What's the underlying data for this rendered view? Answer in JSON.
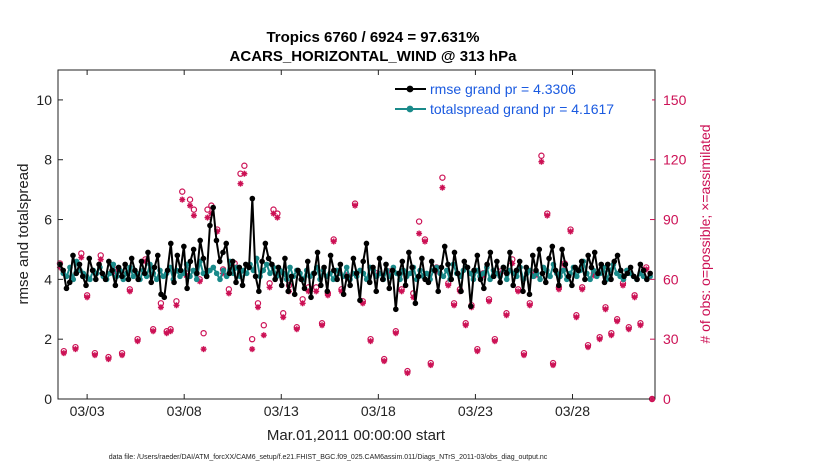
{
  "chart_data": {
    "type": "line",
    "title_line1": "Tropics 6760 / 6924 = 97.631%",
    "title_line2": "ACARS_HORIZONTAL_WIND @ 313 hPa",
    "xlabel": "Mar.01,2011 00:00:00 start",
    "ylabel_left": "rmse and totalspread",
    "ylabel_right": "# of obs: o=possible; ×=assimilated",
    "x_range": [
      1.5,
      32.25
    ],
    "ylim_left": [
      0,
      11
    ],
    "ylim_right": [
      0,
      165
    ],
    "x_ticks": [
      {
        "value": 3,
        "label": "03/03"
      },
      {
        "value": 8,
        "label": "03/08"
      },
      {
        "value": 13,
        "label": "03/13"
      },
      {
        "value": 18,
        "label": "03/18"
      },
      {
        "value": 23,
        "label": "03/23"
      },
      {
        "value": 28,
        "label": "03/28"
      }
    ],
    "y_ticks_left": [
      0,
      2,
      4,
      6,
      8,
      10
    ],
    "y_ticks_right": [
      0,
      30,
      60,
      90,
      120,
      150
    ],
    "legend": [
      {
        "label": "rmse grand pr = 4.3306",
        "color": "#000000"
      },
      {
        "label": "totalspread grand pr = 4.1617",
        "color": "#1a8a8a"
      }
    ],
    "colors": {
      "rmse": "#000000",
      "spread": "#1a8a8a",
      "obs": "#cc1155"
    },
    "series": [
      {
        "name": "rmse",
        "values": [
          4.5,
          4.3,
          3.7,
          3.9,
          4.8,
          4.2,
          4.5,
          4.1,
          3.8,
          4.7,
          4.3,
          4.0,
          4.5,
          4.2,
          4.0,
          4.6,
          4.3,
          3.8,
          4.4,
          4.1,
          4.5,
          4.0,
          4.7,
          4.3,
          4.0,
          4.6,
          4.2,
          4.9,
          3.9,
          4.4,
          4.8,
          3.5,
          3.4,
          4.3,
          5.2,
          3.9,
          4.8,
          4.3,
          5.1,
          3.7,
          4.6,
          5.0,
          4.2,
          5.3,
          4.7,
          4.1,
          5.8,
          6.4,
          5.3,
          4.6,
          4.9,
          5.2,
          4.2,
          4.6,
          3.9,
          4.4,
          3.8,
          4.5,
          4.4,
          6.7,
          4.1,
          3.6,
          4.6,
          5.2,
          4.7,
          4.5,
          4.0,
          4.4,
          3.8,
          4.7,
          3.6,
          4.1,
          3.5,
          4.3,
          4.0,
          3.7,
          4.6,
          3.4,
          4.2,
          4.9,
          3.8,
          4.4,
          3.6,
          4.8,
          4.3,
          4.0,
          4.5,
          3.5,
          4.1,
          3.8,
          4.7,
          4.2,
          3.3,
          4.6,
          5.2,
          3.9,
          4.4,
          3.6,
          4.7,
          4.0,
          4.5,
          3.7,
          4.3,
          3.0,
          4.2,
          4.6,
          3.8,
          4.9,
          4.4,
          3.2,
          4.1,
          4.7,
          4.0,
          3.9,
          4.6,
          4.3,
          3.6,
          4.4,
          5.1,
          4.5,
          4.0,
          4.9,
          4.2,
          3.6,
          4.6,
          4.4,
          3.1,
          4.3,
          4.8,
          4.0,
          3.7,
          4.5,
          4.9,
          4.1,
          4.6,
          3.9,
          4.4,
          4.2,
          4.9,
          3.8,
          4.3,
          4.6,
          3.6,
          4.4,
          3.5,
          4.8,
          4.3,
          5.0,
          4.2,
          3.9,
          4.7,
          5.1,
          4.3,
          3.8,
          5.0,
          4.5,
          4.1,
          3.8,
          4.4,
          4.3,
          4.6,
          4.0,
          4.8,
          4.4,
          4.9,
          4.2,
          4.5,
          3.9,
          4.5,
          4.0,
          4.6,
          4.8,
          4.3,
          4.1,
          4.2,
          4.4,
          4.1,
          4.0,
          4.5,
          4.3,
          4.0,
          4.2
        ]
      },
      {
        "name": "totalspread",
        "values": [
          4.5,
          4.2,
          4.1,
          4.4,
          4.0,
          4.6,
          4.3,
          4.2,
          4.1,
          4.0,
          4.3,
          4.2,
          4.4,
          4.1,
          4.0,
          4.2,
          4.5,
          4.1,
          4.3,
          4.0,
          4.2,
          4.4,
          4.1,
          4.2,
          4.0,
          4.3,
          4.1,
          4.5,
          4.2,
          4.0,
          4.3,
          4.1,
          4.2,
          4.4,
          4.0,
          4.3,
          4.1,
          4.2,
          4.5,
          4.1,
          4.3,
          4.0,
          4.6,
          4.2,
          4.1,
          4.3,
          4.4,
          4.2,
          4.0,
          4.3,
          4.1,
          4.6,
          4.2,
          4.4,
          4.1,
          4.3,
          4.2,
          4.5,
          4.3,
          4.7,
          4.1,
          4.3,
          4.5,
          4.2,
          4.4,
          4.1,
          4.3,
          4.2,
          4.0,
          4.4,
          4.1,
          4.3,
          4.2,
          4.0,
          4.3,
          4.1,
          4.2,
          4.4,
          4.0,
          4.3,
          4.1,
          4.2,
          4.0,
          4.3,
          4.2,
          4.1,
          4.4,
          4.0,
          4.2,
          4.1,
          4.3,
          4.2,
          4.0,
          4.4,
          4.3,
          4.1,
          4.2,
          4.0,
          4.3,
          4.1,
          4.4,
          4.2,
          4.0,
          4.3,
          4.1,
          4.2,
          4.4,
          4.0,
          4.3,
          4.1,
          4.2,
          4.0,
          4.3,
          4.4,
          4.2,
          4.1,
          4.3,
          4.0,
          4.5,
          4.2,
          4.1,
          4.3,
          4.4,
          4.2,
          4.0,
          4.3,
          4.1,
          4.2,
          4.4,
          4.0,
          4.3,
          4.2,
          4.1,
          4.4,
          4.0,
          4.3,
          4.2,
          4.1,
          4.4,
          4.0,
          4.2,
          4.3,
          4.1,
          4.2,
          4.0,
          4.4,
          4.3,
          4.1,
          4.5,
          4.2,
          4.1,
          4.3,
          4.0,
          4.2,
          4.4,
          4.1,
          4.3,
          4.6,
          4.2,
          4.0,
          4.3,
          4.1,
          4.2,
          4.4,
          4.0,
          4.3,
          4.5,
          4.2,
          4.1,
          4.0,
          4.3,
          4.2,
          4.1,
          4.0,
          4.2,
          4.1,
          4.0,
          4.1
        ]
      },
      {
        "name": "obs_possible",
        "points": [
          [
            1.6,
            68
          ],
          [
            1.8,
            24
          ],
          [
            2.4,
            26
          ],
          [
            2.7,
            73
          ],
          [
            3.0,
            52
          ],
          [
            3.4,
            23
          ],
          [
            3.7,
            72
          ],
          [
            4.1,
            21
          ],
          [
            4.4,
            65
          ],
          [
            4.8,
            23
          ],
          [
            5.2,
            55
          ],
          [
            5.6,
            30
          ],
          [
            6.0,
            70
          ],
          [
            6.4,
            35
          ],
          [
            6.8,
            48
          ],
          [
            7.1,
            34
          ],
          [
            7.3,
            35
          ],
          [
            7.6,
            49
          ],
          [
            7.9,
            104
          ],
          [
            8.1,
            63
          ],
          [
            8.3,
            100
          ],
          [
            8.5,
            95
          ],
          [
            8.8,
            60
          ],
          [
            9.0,
            33
          ],
          [
            9.2,
            95
          ],
          [
            9.4,
            97
          ],
          [
            9.7,
            85
          ],
          [
            10.0,
            65
          ],
          [
            10.3,
            55
          ],
          [
            10.6,
            68
          ],
          [
            10.9,
            113
          ],
          [
            11.1,
            117
          ],
          [
            11.5,
            30
          ],
          [
            11.8,
            48
          ],
          [
            12.1,
            37
          ],
          [
            12.4,
            58
          ],
          [
            12.6,
            95
          ],
          [
            12.8,
            93
          ],
          [
            13.1,
            43
          ],
          [
            13.4,
            57
          ],
          [
            13.8,
            36
          ],
          [
            14.1,
            50
          ],
          [
            14.4,
            56
          ],
          [
            14.8,
            56
          ],
          [
            15.1,
            38
          ],
          [
            15.4,
            53
          ],
          [
            15.7,
            80
          ],
          [
            16.1,
            55
          ],
          [
            16.4,
            62
          ],
          [
            16.8,
            98
          ],
          [
            17.2,
            49
          ],
          [
            17.6,
            30
          ],
          [
            17.9,
            63
          ],
          [
            18.3,
            20
          ],
          [
            18.6,
            64
          ],
          [
            18.9,
            34
          ],
          [
            19.2,
            55
          ],
          [
            19.5,
            14
          ],
          [
            19.8,
            53
          ],
          [
            20.1,
            89
          ],
          [
            20.4,
            80
          ],
          [
            20.7,
            18
          ],
          [
            21.0,
            66
          ],
          [
            21.3,
            111
          ],
          [
            21.6,
            58
          ],
          [
            21.9,
            48
          ],
          [
            22.2,
            55
          ],
          [
            22.5,
            38
          ],
          [
            22.8,
            47
          ],
          [
            23.1,
            25
          ],
          [
            23.4,
            63
          ],
          [
            23.7,
            50
          ],
          [
            24.0,
            30
          ],
          [
            24.3,
            64
          ],
          [
            24.6,
            43
          ],
          [
            24.9,
            70
          ],
          [
            25.2,
            55
          ],
          [
            25.5,
            23
          ],
          [
            25.8,
            48
          ],
          [
            26.1,
            63
          ],
          [
            26.4,
            122
          ],
          [
            26.7,
            93
          ],
          [
            27.0,
            18
          ],
          [
            27.3,
            56
          ],
          [
            27.6,
            68
          ],
          [
            27.9,
            85
          ],
          [
            28.2,
            42
          ],
          [
            28.5,
            56
          ],
          [
            28.8,
            27
          ],
          [
            29.1,
            63
          ],
          [
            29.4,
            31
          ],
          [
            29.7,
            46
          ],
          [
            30.0,
            33
          ],
          [
            30.3,
            40
          ],
          [
            30.6,
            58
          ],
          [
            30.9,
            36
          ],
          [
            31.2,
            52
          ],
          [
            31.5,
            38
          ],
          [
            31.8,
            66
          ],
          [
            32.1,
            0
          ]
        ]
      },
      {
        "name": "obs_assimilated",
        "points": [
          [
            1.6,
            66
          ],
          [
            1.8,
            23
          ],
          [
            2.4,
            25
          ],
          [
            2.7,
            71
          ],
          [
            3.0,
            51
          ],
          [
            3.4,
            22
          ],
          [
            3.7,
            70
          ],
          [
            4.1,
            20
          ],
          [
            4.4,
            64
          ],
          [
            4.8,
            22
          ],
          [
            5.2,
            54
          ],
          [
            5.6,
            29
          ],
          [
            6.0,
            69
          ],
          [
            6.4,
            34
          ],
          [
            6.8,
            46
          ],
          [
            7.1,
            33
          ],
          [
            7.3,
            34
          ],
          [
            7.6,
            47
          ],
          [
            7.9,
            100
          ],
          [
            8.1,
            62
          ],
          [
            8.3,
            97
          ],
          [
            8.5,
            92
          ],
          [
            8.8,
            59
          ],
          [
            9.0,
            25
          ],
          [
            9.2,
            91
          ],
          [
            9.4,
            93
          ],
          [
            9.7,
            84
          ],
          [
            10.0,
            63
          ],
          [
            10.3,
            53
          ],
          [
            10.6,
            66
          ],
          [
            10.9,
            108
          ],
          [
            11.1,
            113
          ],
          [
            11.5,
            25
          ],
          [
            11.8,
            46
          ],
          [
            12.1,
            32
          ],
          [
            12.4,
            56
          ],
          [
            12.6,
            93
          ],
          [
            12.8,
            91
          ],
          [
            13.1,
            41
          ],
          [
            13.4,
            54
          ],
          [
            13.8,
            35
          ],
          [
            14.1,
            48
          ],
          [
            14.4,
            54
          ],
          [
            14.8,
            54
          ],
          [
            15.1,
            37
          ],
          [
            15.4,
            52
          ],
          [
            15.7,
            79
          ],
          [
            16.1,
            54
          ],
          [
            16.4,
            61
          ],
          [
            16.8,
            97
          ],
          [
            17.2,
            48
          ],
          [
            17.6,
            29
          ],
          [
            17.9,
            62
          ],
          [
            18.3,
            19
          ],
          [
            18.6,
            63
          ],
          [
            18.9,
            33
          ],
          [
            19.2,
            54
          ],
          [
            19.5,
            13
          ],
          [
            19.8,
            51
          ],
          [
            20.1,
            83
          ],
          [
            20.4,
            79
          ],
          [
            20.7,
            17
          ],
          [
            21.0,
            64
          ],
          [
            21.3,
            106
          ],
          [
            21.6,
            57
          ],
          [
            21.9,
            47
          ],
          [
            22.2,
            54
          ],
          [
            22.5,
            37
          ],
          [
            22.8,
            46
          ],
          [
            23.1,
            24
          ],
          [
            23.4,
            62
          ],
          [
            23.7,
            49
          ],
          [
            24.0,
            29
          ],
          [
            24.3,
            63
          ],
          [
            24.6,
            42
          ],
          [
            24.9,
            68
          ],
          [
            25.2,
            54
          ],
          [
            25.5,
            22
          ],
          [
            25.8,
            47
          ],
          [
            26.1,
            62
          ],
          [
            26.4,
            119
          ],
          [
            26.7,
            92
          ],
          [
            27.0,
            17
          ],
          [
            27.3,
            55
          ],
          [
            27.6,
            67
          ],
          [
            27.9,
            84
          ],
          [
            28.2,
            41
          ],
          [
            28.5,
            55
          ],
          [
            28.8,
            26
          ],
          [
            29.1,
            62
          ],
          [
            29.4,
            30
          ],
          [
            29.7,
            45
          ],
          [
            30.0,
            32
          ],
          [
            30.3,
            39
          ],
          [
            30.6,
            57
          ],
          [
            30.9,
            35
          ],
          [
            31.2,
            51
          ],
          [
            31.5,
            37
          ],
          [
            31.8,
            65
          ],
          [
            32.1,
            0
          ]
        ]
      }
    ]
  },
  "footer": {
    "data_file": "data file: /Users/raeder/DAI/ATM_forcXX/CAM6_setup/f.e21.FHIST_BGC.f09_025.CAM6assim.011/Diags_NTrS_2011-03/obs_diag_output.nc"
  }
}
